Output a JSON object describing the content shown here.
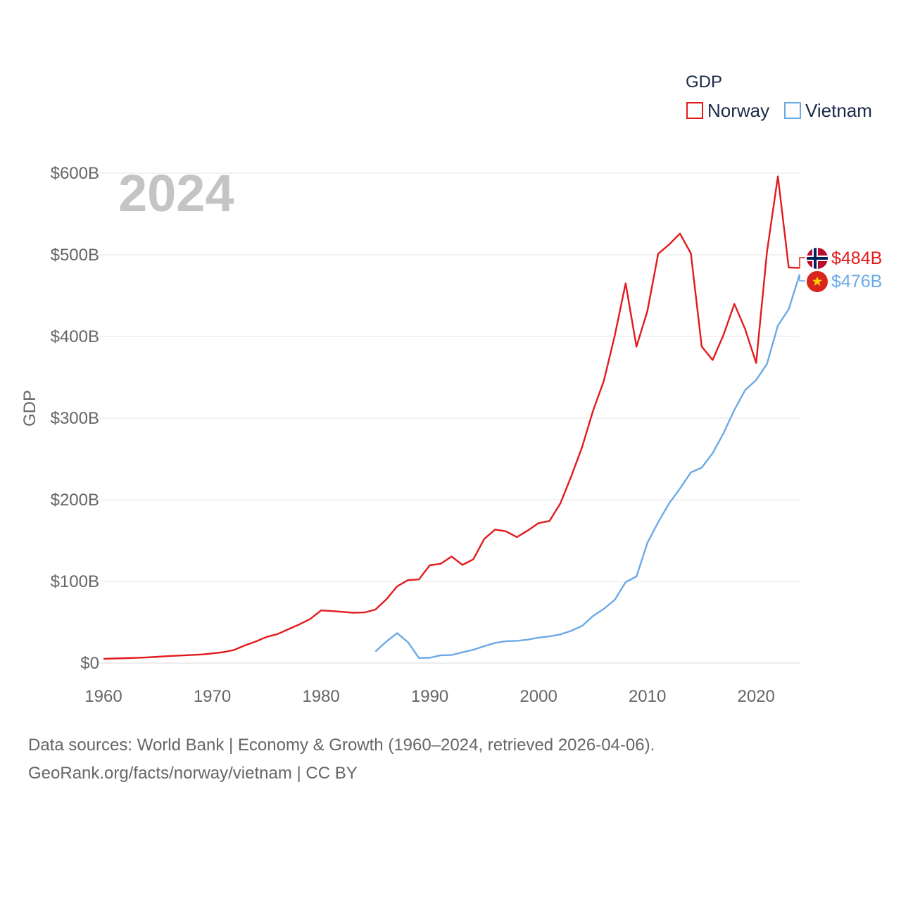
{
  "chart_data": {
    "type": "line",
    "title": "",
    "year_label": "2024",
    "legend_title": "GDP",
    "ylabel": "GDP",
    "xlabel": "",
    "xlim": [
      1960,
      2024
    ],
    "ylim": [
      0,
      600
    ],
    "units": "billion USD",
    "grid": true,
    "legend_position": "top-right",
    "x_ticks": [
      {
        "value": 1960,
        "label": "1960"
      },
      {
        "value": 1970,
        "label": "1970"
      },
      {
        "value": 1980,
        "label": "1980"
      },
      {
        "value": 1990,
        "label": "1990"
      },
      {
        "value": 2000,
        "label": "2000"
      },
      {
        "value": 2010,
        "label": "2010"
      },
      {
        "value": 2020,
        "label": "2020"
      }
    ],
    "y_ticks": [
      {
        "value": 0,
        "label": "$0"
      },
      {
        "value": 100,
        "label": "$100B"
      },
      {
        "value": 200,
        "label": "$200B"
      },
      {
        "value": 300,
        "label": "$300B"
      },
      {
        "value": 400,
        "label": "$400B"
      },
      {
        "value": 500,
        "label": "$500B"
      },
      {
        "value": 600,
        "label": "$600B"
      }
    ],
    "series": [
      {
        "name": "Norway",
        "color": "#e31a1c",
        "end_label": "$484B",
        "flag": "norway-flag-icon",
        "x": [
          1960,
          1961,
          1962,
          1963,
          1964,
          1965,
          1966,
          1967,
          1968,
          1969,
          1970,
          1971,
          1972,
          1973,
          1974,
          1975,
          1976,
          1977,
          1978,
          1979,
          1980,
          1981,
          1982,
          1983,
          1984,
          1985,
          1986,
          1987,
          1988,
          1989,
          1990,
          1991,
          1992,
          1993,
          1994,
          1995,
          1996,
          1997,
          1998,
          1999,
          2000,
          2001,
          2002,
          2003,
          2004,
          2005,
          2006,
          2007,
          2008,
          2009,
          2010,
          2011,
          2012,
          2013,
          2014,
          2015,
          2016,
          2017,
          2018,
          2019,
          2020,
          2021,
          2022,
          2023,
          2024
        ],
        "values": [
          5.2,
          5.6,
          6.0,
          6.4,
          7.0,
          7.8,
          8.5,
          9.2,
          9.8,
          10.5,
          11.8,
          13.4,
          16.0,
          21.6,
          26.4,
          32.1,
          35.5,
          41.5,
          47.3,
          54.0,
          64.5,
          63.7,
          62.7,
          61.6,
          62.0,
          65.5,
          78.0,
          94.0,
          101.6,
          102.4,
          119.8,
          121.6,
          130.5,
          120.3,
          127.1,
          152.0,
          163.5,
          161.4,
          154.2,
          162.3,
          171.5,
          174.0,
          195.4,
          228.6,
          264.4,
          308.7,
          345.5,
          400.9,
          465.0,
          387.5,
          431.1,
          501.4,
          512.6,
          526.0,
          501.7,
          387.7,
          371.1,
          401.8,
          439.8,
          408.7,
          367.6,
          503.5,
          596.0,
          484.5,
          484.0
        ]
      },
      {
        "name": "Vietnam",
        "color": "#6baae6",
        "end_label": "$476B",
        "flag": "vietnam-flag-icon",
        "x": [
          1985,
          1986,
          1987,
          1988,
          1989,
          1990,
          1991,
          1992,
          1993,
          1994,
          1995,
          1996,
          1997,
          1998,
          1999,
          2000,
          2001,
          2002,
          2003,
          2004,
          2005,
          2006,
          2007,
          2008,
          2009,
          2010,
          2011,
          2012,
          2013,
          2014,
          2015,
          2016,
          2017,
          2018,
          2019,
          2020,
          2021,
          2022,
          2023,
          2024
        ],
        "values": [
          14.1,
          26.3,
          36.7,
          25.4,
          6.3,
          6.5,
          9.6,
          9.9,
          13.2,
          16.3,
          20.7,
          24.7,
          26.8,
          27.2,
          28.7,
          31.2,
          32.7,
          35.1,
          39.6,
          45.4,
          57.6,
          66.4,
          77.4,
          99.1,
          106.0,
          147.2,
          172.6,
          195.6,
          213.7,
          233.5,
          239.3,
          257.1,
          281.4,
          310.1,
          334.4,
          346.6,
          366.5,
          413.4,
          433.4,
          476.0
        ]
      }
    ]
  },
  "footer": {
    "source_line1": "Data sources: World Bank | Economy & Growth (1960–2024, retrieved 2026-04-06).",
    "source_line2": "GeoRank.org/facts/norway/vietnam | CC BY"
  }
}
